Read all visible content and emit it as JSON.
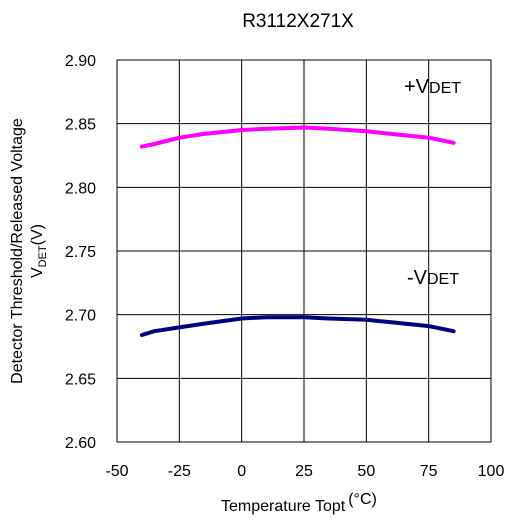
{
  "chart_data": {
    "type": "line",
    "title": "R3112X271X",
    "xlabel": "Temperature Topt",
    "xlabel_unit": "(°C)",
    "ylabel_line1": "Detector Threshold/Released Voltage",
    "ylabel_v": "V",
    "ylabel_sub": "DET",
    "ylabel_unit": "(V)",
    "xlim": [
      -50,
      100
    ],
    "ylim": [
      2.6,
      2.9
    ],
    "x_ticks": [
      "-50",
      "-25",
      "0",
      "25",
      "50",
      "75",
      "100"
    ],
    "y_ticks": [
      "2.60",
      "2.65",
      "2.70",
      "2.75",
      "2.80",
      "2.85",
      "2.90"
    ],
    "grid": true,
    "series": [
      {
        "name": "+VDET",
        "label_sign": "+V",
        "label_sub": "DET",
        "color": "#ff00ff",
        "x": [
          -40,
          -35,
          -25,
          -15,
          0,
          10,
          25,
          35,
          50,
          60,
          75,
          85
        ],
        "y": [
          2.832,
          2.834,
          2.839,
          2.842,
          2.845,
          2.846,
          2.847,
          2.846,
          2.844,
          2.842,
          2.839,
          2.835
        ]
      },
      {
        "name": "-VDET",
        "label_sign": "-V",
        "label_sub": "DET",
        "color": "#000080",
        "x": [
          -40,
          -35,
          -25,
          -15,
          0,
          10,
          25,
          35,
          50,
          60,
          75,
          85
        ],
        "y": [
          2.684,
          2.687,
          2.69,
          2.693,
          2.697,
          2.698,
          2.698,
          2.697,
          2.696,
          2.694,
          2.691,
          2.687
        ]
      }
    ]
  }
}
